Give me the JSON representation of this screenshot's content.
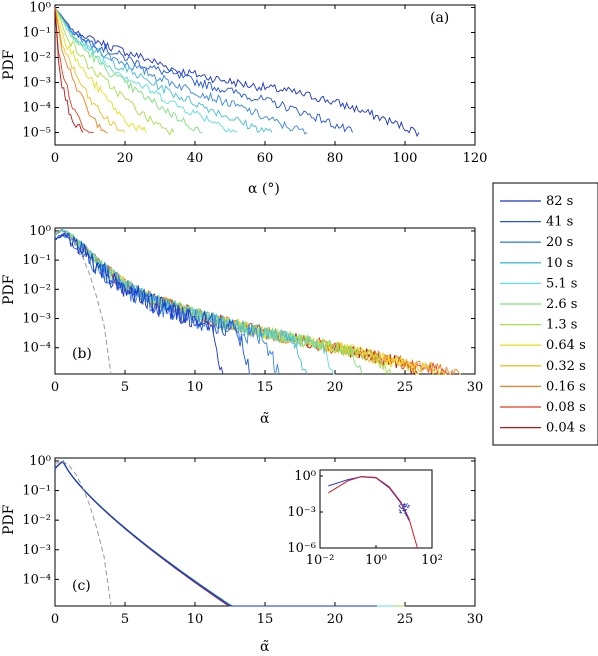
{
  "legend": {
    "entries": [
      "82 s",
      "41 s",
      "20 s",
      "10 s",
      "5.1 s",
      "2.6 s",
      "1.3 s",
      "0.64 s",
      "0.32 s",
      "0.16 s",
      "0.08 s",
      "0.04 s"
    ],
    "colors": [
      "#1a33c8",
      "#2255dd",
      "#3a86e6",
      "#45bfd6",
      "#5fdfe0",
      "#7ee07a",
      "#a6e04a",
      "#e6e020",
      "#f0c020",
      "#f08020",
      "#e83a1a",
      "#b8141a"
    ],
    "placement": "right"
  },
  "chart_data": [
    {
      "type": "line",
      "panel_label": "(a)",
      "ylabel": "PDF",
      "xlabel": "α (°)",
      "xlim": [
        0,
        120
      ],
      "ylim_log10": [
        -5.5,
        0.1
      ],
      "x_ticks": [
        "0",
        "20",
        "40",
        "60",
        "80",
        "100",
        "120"
      ],
      "y_ticks": [
        "10⁰",
        "10⁻¹",
        "10⁻²",
        "10⁻³",
        "10⁻⁴",
        "10⁻⁵"
      ],
      "y_scale": "log",
      "series": [
        {
          "name": "82 s",
          "x": [
            0,
            5,
            15,
            25,
            35,
            45,
            55,
            65,
            75,
            85,
            95,
            104
          ],
          "y": [
            1.0,
            0.12,
            0.03,
            0.01,
            0.003,
            0.0015,
            0.0008,
            0.0005,
            0.00025,
            0.0001,
            3e-05,
            1e-05
          ]
        },
        {
          "name": "41 s",
          "x": [
            0,
            5,
            15,
            25,
            35,
            45,
            55,
            65,
            75,
            85
          ],
          "y": [
            1.0,
            0.1,
            0.02,
            0.005,
            0.0018,
            0.0007,
            0.0003,
            0.00012,
            4e-05,
            1e-05
          ]
        },
        {
          "name": "20 s",
          "x": [
            0,
            5,
            15,
            25,
            35,
            45,
            55,
            65,
            72
          ],
          "y": [
            1.0,
            0.09,
            0.012,
            0.003,
            0.0008,
            0.00025,
            8e-05,
            2e-05,
            1e-05
          ]
        },
        {
          "name": "10 s",
          "x": [
            0,
            5,
            15,
            25,
            35,
            45,
            55,
            62
          ],
          "y": [
            1.0,
            0.08,
            0.008,
            0.0015,
            0.0003,
            8e-05,
            2e-05,
            1e-05
          ]
        },
        {
          "name": "5.1 s",
          "x": [
            0,
            5,
            15,
            25,
            35,
            45,
            52
          ],
          "y": [
            1.0,
            0.07,
            0.005,
            0.0007,
            0.00012,
            3e-05,
            1e-05
          ]
        },
        {
          "name": "2.6 s",
          "x": [
            0,
            5,
            15,
            25,
            35,
            42
          ],
          "y": [
            1.0,
            0.06,
            0.003,
            0.0003,
            4e-05,
            1e-05
          ]
        },
        {
          "name": "1.3 s",
          "x": [
            0,
            4,
            10,
            18,
            26,
            34
          ],
          "y": [
            1.0,
            0.05,
            0.004,
            0.0004,
            4e-05,
            1e-05
          ]
        },
        {
          "name": "0.64 s",
          "x": [
            0,
            3,
            8,
            14,
            20,
            26
          ],
          "y": [
            1.0,
            0.04,
            0.003,
            0.0003,
            3e-05,
            1e-05
          ]
        },
        {
          "name": "0.32 s",
          "x": [
            0,
            2,
            6,
            10,
            15,
            20
          ],
          "y": [
            1.0,
            0.035,
            0.002,
            0.0002,
            3e-05,
            1e-05
          ]
        },
        {
          "name": "0.16 s",
          "x": [
            0,
            2,
            5,
            8,
            11,
            15
          ],
          "y": [
            1.0,
            0.02,
            0.0015,
            0.0002,
            3e-05,
            1e-05
          ]
        },
        {
          "name": "0.08 s",
          "x": [
            0,
            1,
            3,
            5,
            8,
            11
          ],
          "y": [
            1.0,
            0.015,
            0.001,
            0.0001,
            2e-05,
            1e-05
          ]
        },
        {
          "name": "0.04 s",
          "x": [
            0,
            1,
            2,
            4,
            6,
            8
          ],
          "y": [
            1.0,
            0.01,
            0.0008,
            8e-05,
            2e-05,
            1e-05
          ]
        }
      ]
    },
    {
      "type": "line",
      "panel_label": "(b)",
      "ylabel": "PDF",
      "xlabel": "α̃",
      "xlim": [
        0,
        30
      ],
      "ylim_log10": [
        -4.9,
        0.1
      ],
      "x_ticks": [
        "0",
        "5",
        "10",
        "15",
        "20",
        "25",
        "30"
      ],
      "y_ticks": [
        "10⁰",
        "10⁻¹",
        "10⁻²",
        "10⁻³",
        "10⁻⁴"
      ],
      "y_scale": "log",
      "collapsed_curve": {
        "x": [
          0,
          0.5,
          1,
          2,
          3,
          4,
          5,
          7,
          9,
          11,
          13,
          15,
          17,
          19,
          21,
          23,
          25,
          27,
          29
        ],
        "y": [
          0.6,
          0.95,
          0.7,
          0.25,
          0.08,
          0.03,
          0.012,
          0.004,
          0.0018,
          0.0009,
          0.0005,
          0.00028,
          0.00018,
          0.00011,
          7e-05,
          4e-05,
          2.5e-05,
          1.6e-05,
          1e-05
        ]
      },
      "series_end_x": [
        12,
        14,
        16,
        18,
        20,
        22,
        24,
        26,
        28,
        29,
        28,
        26
      ],
      "reference_curve": {
        "style": "dashed",
        "color": "#999999",
        "x": [
          0,
          0.5,
          1,
          1.5,
          2,
          2.5,
          3,
          3.5,
          4
        ],
        "y": [
          0.8,
          1.0,
          0.7,
          0.35,
          0.12,
          0.03,
          0.005,
          0.0006,
          1e-05
        ]
      }
    },
    {
      "type": "line",
      "panel_label": "(c)",
      "ylabel": "PDF",
      "xlabel": "α̃",
      "xlim": [
        0,
        30
      ],
      "ylim_log10": [
        -4.9,
        0.1
      ],
      "x_ticks": [
        "0",
        "5",
        "10",
        "15",
        "20",
        "25",
        "30"
      ],
      "y_ticks": [
        "10⁰",
        "10⁻¹",
        "10⁻²",
        "10⁻³",
        "10⁻⁴"
      ],
      "y_scale": "log",
      "fit_end_x": [
        23,
        22,
        22.5,
        22.5,
        24,
        24.5,
        25,
        25,
        24,
        23,
        21.5,
        20
      ],
      "fit_decay_rate": [
        0.33,
        0.345,
        0.34,
        0.34,
        0.32,
        0.315,
        0.31,
        0.31,
        0.32,
        0.33,
        0.355,
        0.37
      ],
      "reference_curve": {
        "style": "dashed",
        "color": "#999999",
        "x": [
          0,
          0.5,
          1,
          1.5,
          2,
          2.5,
          3,
          3.5,
          4
        ],
        "y": [
          0.8,
          1.0,
          0.7,
          0.35,
          0.12,
          0.03,
          0.005,
          0.0006,
          1e-05
        ]
      },
      "inset": {
        "x_scale": "log",
        "y_scale": "log",
        "xlim_log10": [
          -2,
          2
        ],
        "ylim_log10": [
          -6,
          0.5
        ],
        "x_ticks": [
          "10⁻²",
          "10⁰",
          "10²"
        ],
        "y_ticks": [
          "10⁰",
          "10⁻³",
          "10⁻⁶"
        ],
        "series": [
          {
            "color": "#2233cc",
            "x": [
              0.02,
              0.05,
              0.1,
              0.3,
              1,
              3,
              8,
              15
            ],
            "y": [
              0.15,
              0.3,
              0.5,
              0.85,
              0.7,
              0.1,
              0.005,
              0.0002
            ]
          },
          {
            "color": "#d81a2a",
            "x": [
              0.02,
              0.05,
              0.1,
              0.3,
              1,
              3,
              8,
              15,
              30
            ],
            "y": [
              0.04,
              0.15,
              0.4,
              0.9,
              0.75,
              0.12,
              0.006,
              0.0003,
              1e-06
            ]
          }
        ]
      }
    }
  ]
}
